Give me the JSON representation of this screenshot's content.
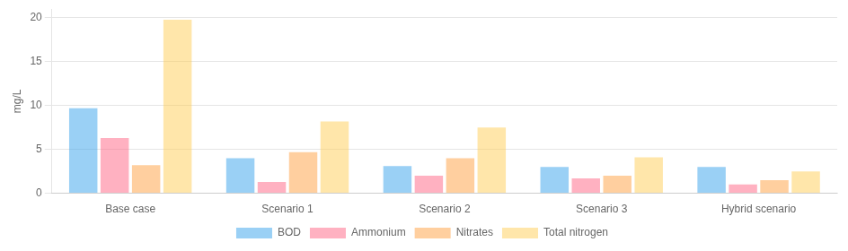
{
  "chart_data": {
    "type": "bar",
    "categories": [
      "Base case",
      "Scenario 1",
      "Scenario 2",
      "Scenario 3",
      "Hybrid scenario"
    ],
    "series": [
      {
        "name": "BOD",
        "values": [
          9.7,
          4.0,
          3.1,
          3.0,
          3.0
        ]
      },
      {
        "name": "Ammonium",
        "values": [
          6.3,
          1.3,
          2.0,
          1.7,
          1.0
        ]
      },
      {
        "name": "Nitrates",
        "values": [
          3.2,
          4.7,
          4.0,
          2.0,
          1.5
        ]
      },
      {
        "name": "Total nitrogen",
        "values": [
          19.8,
          8.2,
          7.5,
          4.1,
          2.5
        ]
      }
    ],
    "ylabel": "mg/L",
    "ylim": [
      0,
      21
    ],
    "yticks": [
      0,
      5,
      10,
      15,
      20
    ],
    "grid": true,
    "legend": "bottom"
  }
}
